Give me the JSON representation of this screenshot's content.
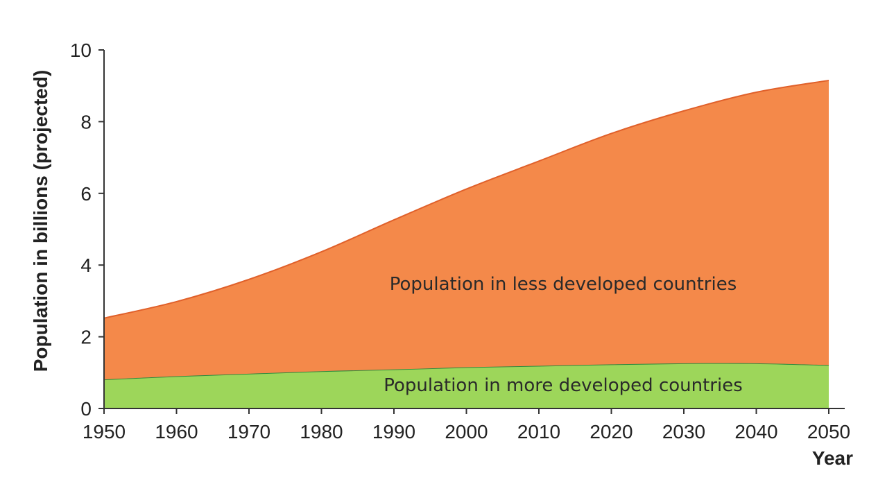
{
  "chart_data": {
    "type": "area",
    "stacked": true,
    "title": "",
    "xlabel": "Year",
    "ylabel": "Population in billions (projected)",
    "x": [
      1950,
      1960,
      1970,
      1980,
      1990,
      2000,
      2010,
      2020,
      2030,
      2040,
      2050
    ],
    "xlim": [
      1950,
      2050
    ],
    "ylim": [
      0,
      10
    ],
    "x_ticks": [
      1950,
      1960,
      1970,
      1980,
      1990,
      2000,
      2010,
      2020,
      2030,
      2040,
      2050
    ],
    "y_ticks": [
      0,
      2,
      4,
      6,
      8,
      10
    ],
    "series": [
      {
        "name": "Population in more developed countries",
        "values": [
          0.81,
          0.9,
          0.97,
          1.04,
          1.09,
          1.15,
          1.19,
          1.23,
          1.26,
          1.26,
          1.21
        ],
        "color": "#9dd65a",
        "line_color": "#2e8b3e"
      },
      {
        "name": "Population in less developed countries",
        "values": [
          1.71,
          2.08,
          2.63,
          3.33,
          4.17,
          4.97,
          5.71,
          6.44,
          7.04,
          7.56,
          7.94
        ],
        "color": "#f4894a",
        "line_color": "#e0602a"
      }
    ],
    "totals": [
      2.52,
      2.98,
      3.6,
      4.37,
      5.26,
      6.12,
      6.9,
      7.67,
      8.3,
      8.82,
      9.15
    ],
    "grid": false,
    "legend": "none"
  }
}
